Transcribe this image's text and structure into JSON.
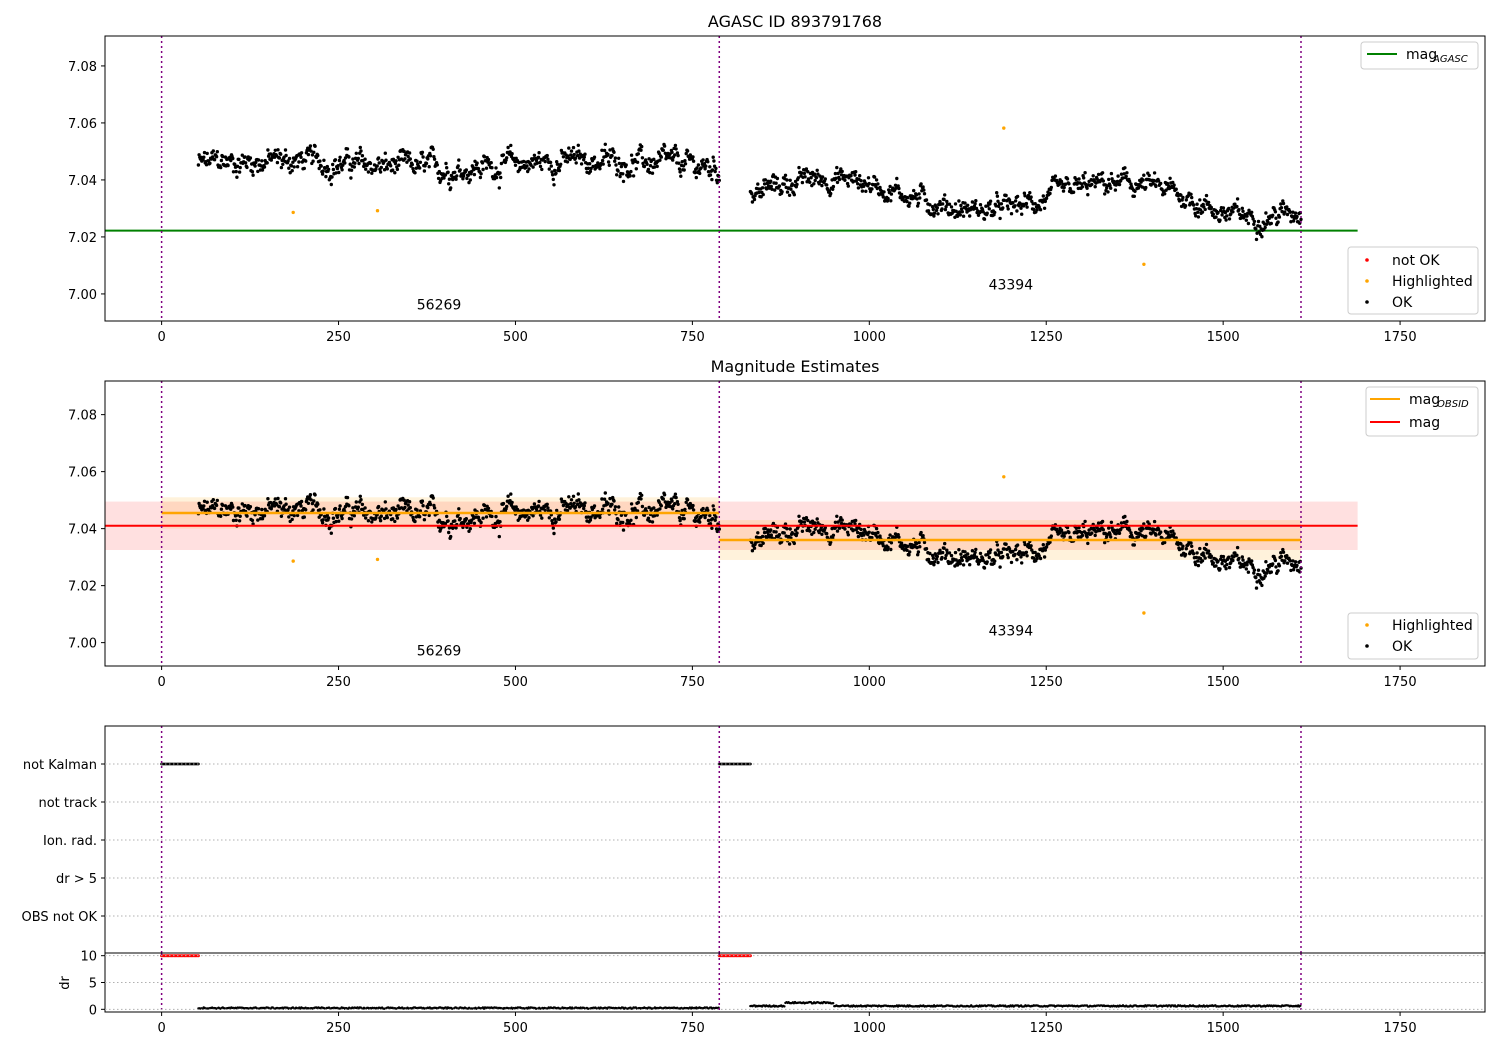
{
  "chart_data": [
    {
      "type": "scatter",
      "title": "AGASC ID 893791768",
      "xlim": [
        -80,
        1870
      ],
      "ylim": [
        6.9905,
        7.0905
      ],
      "xticks": [
        "0",
        "250",
        "500",
        "750",
        "1000",
        "1250",
        "1500",
        "1750"
      ],
      "yticks": [
        "7.00",
        "7.02",
        "7.04",
        "7.06",
        "7.08"
      ],
      "obs_boundaries": [
        0,
        788,
        1610
      ],
      "obs_labels": [
        {
          "text": "56269",
          "x": 392,
          "y": 6.9945
        },
        {
          "text": "43394",
          "x": 1200,
          "y": 7.0015
        }
      ],
      "mag_agasc": {
        "value": 7.0222,
        "x": [
          -80,
          1690
        ],
        "color": "#008000"
      },
      "segments": [
        {
          "x0": 52,
          "x1": 788,
          "base": 7.0455,
          "amp": 0.0045,
          "noise": 0.0045
        },
        {
          "x0": 832,
          "x1": 1610,
          "base": 7.035,
          "amp": 0.007,
          "noise": 0.004
        }
      ],
      "highlighted_points": [
        [
          186,
          7.0286
        ],
        [
          305,
          7.0292
        ],
        [
          1190,
          7.0582
        ],
        [
          1388,
          7.0104
        ]
      ],
      "legend_top": [
        {
          "label": "mag",
          "sub": "AGASC",
          "color": "#008000"
        }
      ],
      "legend_bottom": [
        {
          "label": "not OK",
          "color": "#ff0000"
        },
        {
          "label": "Highlighted",
          "color": "#ffa500"
        },
        {
          "label": "OK",
          "color": "#000000"
        }
      ]
    },
    {
      "type": "scatter",
      "title": "Magnitude Estimates",
      "xlim": [
        -80,
        1870
      ],
      "ylim": [
        6.9918,
        7.0918
      ],
      "xticks": [
        "0",
        "250",
        "500",
        "750",
        "1000",
        "1250",
        "1500",
        "1750"
      ],
      "yticks": [
        "7.00",
        "7.02",
        "7.04",
        "7.06",
        "7.08"
      ],
      "obs_boundaries": [
        0,
        788,
        1610
      ],
      "obs_labels": [
        {
          "text": "56269",
          "x": 392,
          "y": 6.9955
        },
        {
          "text": "43394",
          "x": 1200,
          "y": 7.0025
        }
      ],
      "mag": {
        "value": 7.041,
        "band": [
          7.0325,
          7.0495
        ],
        "x": [
          -80,
          1690
        ],
        "color": "#ff0000"
      },
      "mag_obsid": [
        {
          "x0": 0,
          "x1": 788,
          "value": 7.0455,
          "band": [
            7.04,
            7.051
          ]
        },
        {
          "x0": 788,
          "x1": 1610,
          "value": 7.036,
          "band": [
            7.029,
            7.043
          ]
        }
      ],
      "legend_top": [
        {
          "label": "mag",
          "sub": "OBSID",
          "color": "#ffa500"
        },
        {
          "label": "mag",
          "sub": "",
          "color": "#ff0000"
        }
      ],
      "legend_bottom": [
        {
          "label": "Highlighted",
          "color": "#ffa500"
        },
        {
          "label": "OK",
          "color": "#000000"
        }
      ]
    },
    {
      "type": "scatter",
      "title": "",
      "categories": [
        "not Kalman",
        "not track",
        "Ion. rad.",
        "dr > 5",
        "OBS not OK"
      ],
      "flag_ranges": [
        {
          "category": "not Kalman",
          "x": [
            [
              0,
              52
            ],
            [
              788,
              832
            ]
          ]
        }
      ],
      "xlim": [
        -80,
        1870
      ]
    },
    {
      "type": "scatter",
      "title": "",
      "ylabel": "dr",
      "ylim": [
        -0.5,
        10.5
      ],
      "yticks": [
        "0",
        "5",
        "10"
      ],
      "xticks": [
        "0",
        "250",
        "500",
        "750",
        "1000",
        "1250",
        "1500",
        "1750"
      ],
      "xlim": [
        -80,
        1870
      ],
      "capped": [
        {
          "x": [
            0,
            52
          ],
          "value": 10
        },
        {
          "x": [
            788,
            832
          ],
          "value": 10
        }
      ],
      "dr_segments": [
        {
          "x0": 52,
          "x1": 788,
          "base": 0.1
        },
        {
          "x0": 832,
          "x1": 1610,
          "base": 0.5
        }
      ]
    }
  ]
}
